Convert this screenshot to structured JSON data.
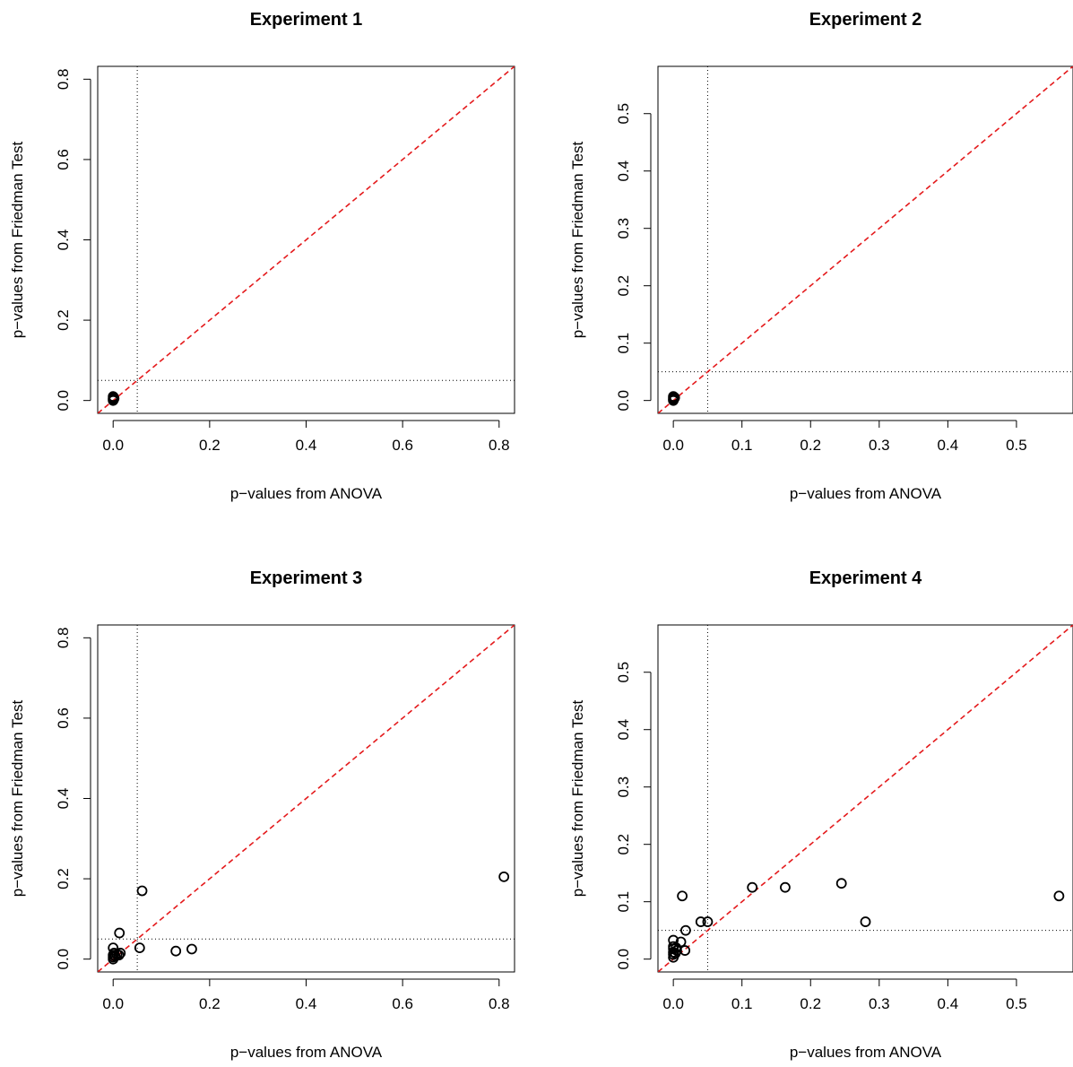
{
  "chart_data": [
    {
      "type": "scatter",
      "title": "Experiment 1",
      "xlabel": "p−values from ANOVA",
      "ylabel": "p−values from Friedman Test",
      "xlim": [
        -0.032,
        0.832
      ],
      "ylim": [
        -0.032,
        0.832
      ],
      "xticks": [
        0.0,
        0.2,
        0.4,
        0.6,
        0.8
      ],
      "yticks": [
        0.0,
        0.2,
        0.4,
        0.6,
        0.8
      ],
      "tick_labels": [
        "0.0",
        "0.2",
        "0.4",
        "0.6",
        "0.8"
      ],
      "threshold": 0.05,
      "grid": false,
      "diagonal_color": "#e41a1c",
      "points": [
        [
          0.0,
          0.0
        ],
        [
          0.0,
          0.002
        ],
        [
          0.0,
          0.004
        ],
        [
          0.0,
          0.006
        ],
        [
          0.001,
          0.008
        ],
        [
          0.0,
          0.01
        ],
        [
          0.001,
          0.003
        ],
        [
          0.002,
          0.005
        ]
      ]
    },
    {
      "type": "scatter",
      "title": "Experiment 2",
      "xlabel": "p−values from ANOVA",
      "ylabel": "p−values from Friedman Test",
      "xlim": [
        -0.0224,
        0.5824
      ],
      "ylim": [
        -0.0224,
        0.5824
      ],
      "xticks": [
        0.0,
        0.1,
        0.2,
        0.3,
        0.4,
        0.5
      ],
      "yticks": [
        0.0,
        0.1,
        0.2,
        0.3,
        0.4,
        0.5
      ],
      "tick_labels": [
        "0.0",
        "0.1",
        "0.2",
        "0.3",
        "0.4",
        "0.5"
      ],
      "threshold": 0.05,
      "grid": false,
      "diagonal_color": "#e41a1c",
      "points": [
        [
          0.0,
          0.0
        ],
        [
          0.0,
          0.002
        ],
        [
          0.0,
          0.004
        ],
        [
          0.001,
          0.006
        ],
        [
          0.0,
          0.007
        ],
        [
          0.001,
          0.003
        ],
        [
          0.002,
          0.005
        ]
      ]
    },
    {
      "type": "scatter",
      "title": "Experiment 3",
      "xlabel": "p−values from ANOVA",
      "ylabel": "p−values from Friedman Test",
      "xlim": [
        -0.032,
        0.832
      ],
      "ylim": [
        -0.032,
        0.832
      ],
      "xticks": [
        0.0,
        0.2,
        0.4,
        0.6,
        0.8
      ],
      "yticks": [
        0.0,
        0.2,
        0.4,
        0.6,
        0.8
      ],
      "tick_labels": [
        "0.0",
        "0.2",
        "0.4",
        "0.6",
        "0.8"
      ],
      "threshold": 0.05,
      "grid": false,
      "diagonal_color": "#e41a1c",
      "points": [
        [
          0.0,
          0.0
        ],
        [
          0.0,
          0.005
        ],
        [
          0.0,
          0.01
        ],
        [
          0.002,
          0.015
        ],
        [
          0.0,
          0.028
        ],
        [
          0.004,
          0.008
        ],
        [
          0.008,
          0.012
        ],
        [
          0.012,
          0.01
        ],
        [
          0.015,
          0.015
        ],
        [
          0.013,
          0.065
        ],
        [
          0.055,
          0.028
        ],
        [
          0.06,
          0.17
        ],
        [
          0.13,
          0.02
        ],
        [
          0.163,
          0.025
        ],
        [
          0.81,
          0.205
        ]
      ]
    },
    {
      "type": "scatter",
      "title": "Experiment 4",
      "xlabel": "p−values from ANOVA",
      "ylabel": "p−values from Friedman Test",
      "xlim": [
        -0.0224,
        0.5824
      ],
      "ylim": [
        -0.0224,
        0.5824
      ],
      "xticks": [
        0.0,
        0.1,
        0.2,
        0.3,
        0.4,
        0.5
      ],
      "yticks": [
        0.0,
        0.1,
        0.2,
        0.3,
        0.4,
        0.5
      ],
      "tick_labels": [
        "0.0",
        "0.1",
        "0.2",
        "0.3",
        "0.4",
        "0.5"
      ],
      "threshold": 0.05,
      "grid": false,
      "diagonal_color": "#e41a1c",
      "points": [
        [
          0.0,
          0.003
        ],
        [
          0.0,
          0.008
        ],
        [
          0.0,
          0.012
        ],
        [
          0.0,
          0.018
        ],
        [
          0.0,
          0.022
        ],
        [
          0.0,
          0.033
        ],
        [
          0.003,
          0.01
        ],
        [
          0.005,
          0.015
        ],
        [
          0.004,
          0.02
        ],
        [
          0.011,
          0.03
        ],
        [
          0.017,
          0.015
        ],
        [
          0.013,
          0.11
        ],
        [
          0.018,
          0.05
        ],
        [
          0.04,
          0.065
        ],
        [
          0.05,
          0.065
        ],
        [
          0.115,
          0.125
        ],
        [
          0.163,
          0.125
        ],
        [
          0.245,
          0.132
        ],
        [
          0.28,
          0.065
        ],
        [
          0.562,
          0.11
        ]
      ]
    }
  ]
}
